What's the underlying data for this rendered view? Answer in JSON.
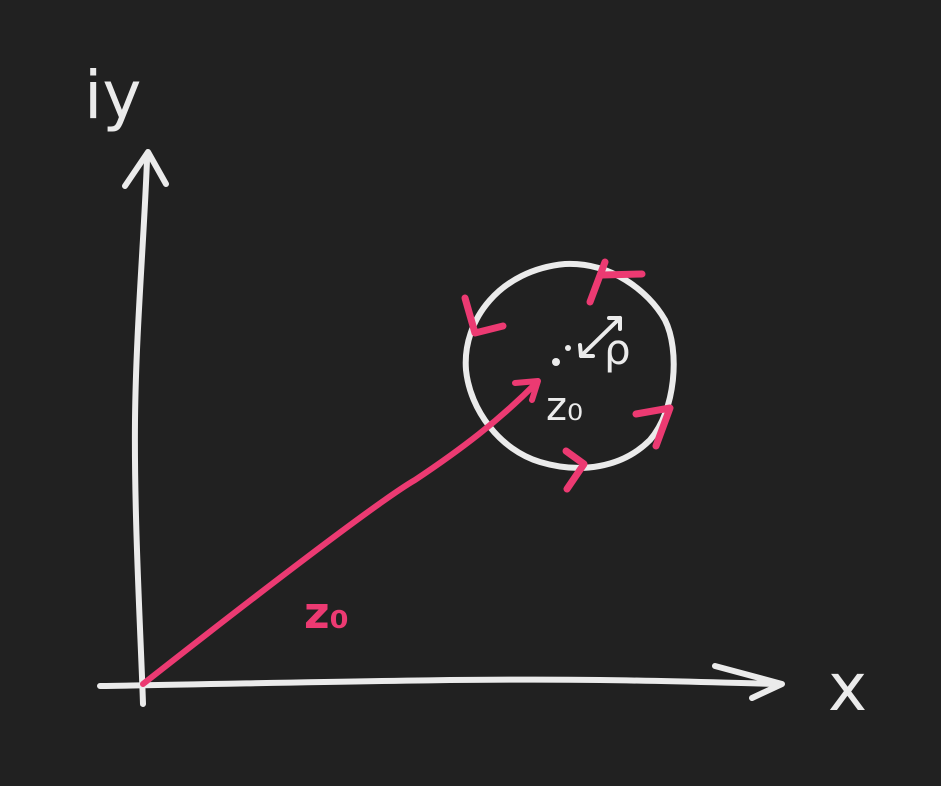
{
  "labels": {
    "y_axis": "iy",
    "x_axis": "x",
    "vector": "z₀",
    "center": "z₀",
    "radius": "ρ"
  },
  "colors": {
    "background": "#212121",
    "stroke": "#ebebeb",
    "accent": "#ec3a72"
  }
}
